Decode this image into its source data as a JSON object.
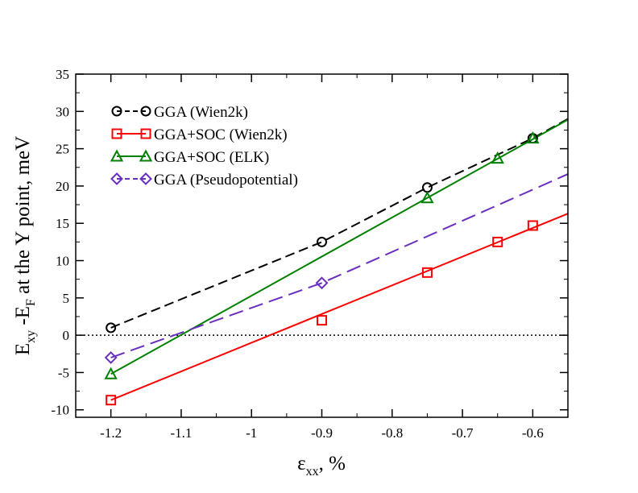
{
  "chart_data": {
    "type": "line",
    "title": "",
    "xlabel": {
      "main": "ε",
      "sub": "xx",
      "rest": ", %"
    },
    "ylabel": {
      "e1": "E",
      "sub1": "xy",
      "mid": " -E",
      "sub2": "F",
      "rest": " at the Y point, meV"
    },
    "xlim": [
      -1.25,
      -0.55
    ],
    "ylim": [
      -11,
      35
    ],
    "xticks": [
      -1.2,
      -1.1,
      -1,
      -0.9,
      -0.8,
      -0.7,
      -0.6
    ],
    "xtick_labels": [
      "-1.2",
      "-1.1",
      "-1",
      "-0.9",
      "-0.8",
      "-0.7",
      "-0.6"
    ],
    "yticks": [
      -10,
      -5,
      0,
      5,
      10,
      15,
      20,
      25,
      30,
      35
    ],
    "ytick_labels": [
      "-10",
      "-5",
      "0",
      "5",
      "10",
      "15",
      "20",
      "25",
      "30",
      "35"
    ],
    "zero_line": true,
    "legend_position": "top-left",
    "series": [
      {
        "name": "GGA (Wien2k)",
        "color": "#000000",
        "marker": "circle",
        "dash": "dashed",
        "x": [
          -1.2,
          -0.9,
          -0.75,
          -0.6
        ],
        "y": [
          1.0,
          12.5,
          19.8,
          26.4
        ],
        "fit": [
          [
            -1.2,
            1.0
          ],
          [
            -0.9,
            12.5
          ],
          [
            -0.75,
            19.8
          ],
          [
            -0.6,
            26.4
          ],
          [
            -0.55,
            29.0
          ]
        ]
      },
      {
        "name": "GGA+SOC (Wien2k)",
        "color": "#ff0000",
        "marker": "square",
        "dash": "solid",
        "x": [
          -1.2,
          -0.9,
          -0.75,
          -0.65,
          -0.6
        ],
        "y": [
          -8.7,
          2.0,
          8.4,
          12.5,
          14.7
        ],
        "fit": [
          [
            -1.2,
            -8.7
          ],
          [
            -0.55,
            16.3
          ]
        ]
      },
      {
        "name": "GGA+SOC (ELK)",
        "color": "#008000",
        "marker": "triangle",
        "dash": "solid",
        "x": [
          -1.2,
          -0.75,
          -0.65,
          -0.6
        ],
        "y": [
          -5.2,
          18.4,
          23.7,
          26.4
        ],
        "fit": [
          [
            -1.2,
            -5.2
          ],
          [
            -0.55,
            28.9
          ]
        ]
      },
      {
        "name": "GGA (Pseudopotential)",
        "color": "#6a2fbf",
        "marker": "diamond",
        "dash": "longdash",
        "x": [
          -1.2,
          -0.9
        ],
        "y": [
          -3.0,
          7.0
        ],
        "fit": [
          [
            -1.2,
            -3.0
          ],
          [
            -0.9,
            7.0
          ],
          [
            -0.55,
            21.6
          ]
        ]
      }
    ]
  }
}
